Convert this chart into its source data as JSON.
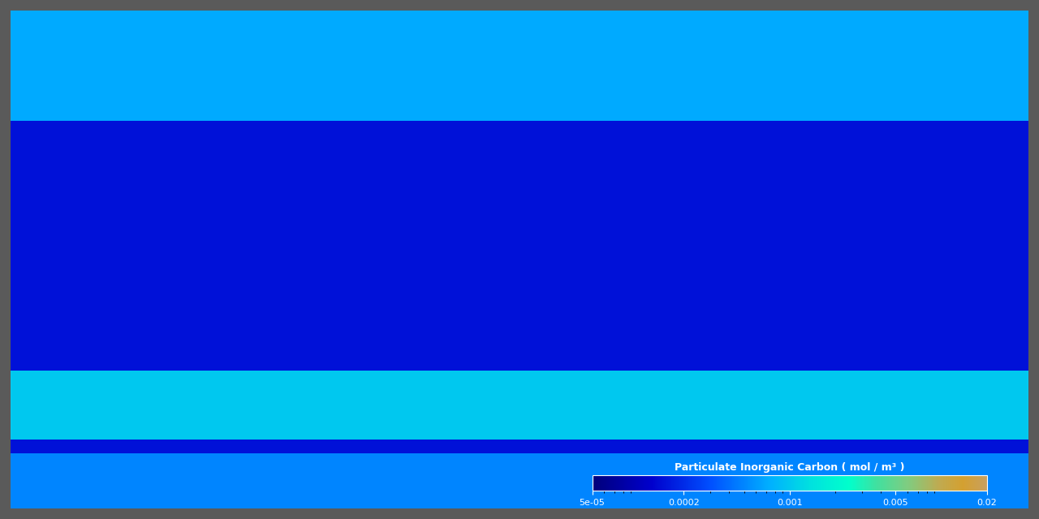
{
  "title": "Particulate Inorganic Carbon ( mol / m³ )",
  "colorbar_label": "Particulate Inorganic Carbon ( mol / m³ )",
  "vmin": 5e-05,
  "vmax": 0.02,
  "colorbar_ticks": [
    5e-05,
    0.0002,
    0.001,
    0.005,
    0.02
  ],
  "colorbar_ticklabels": [
    "5e-05",
    "0.0002",
    "0.001",
    "0.005",
    "0.02"
  ],
  "background_color": "#3a3a3a",
  "land_color": "#404040",
  "colormap_colors": [
    [
      0.0,
      "#00007a"
    ],
    [
      0.15,
      "#0000cd"
    ],
    [
      0.3,
      "#0050ff"
    ],
    [
      0.45,
      "#00b0ff"
    ],
    [
      0.55,
      "#00e0e0"
    ],
    [
      0.65,
      "#00ffcc"
    ],
    [
      0.72,
      "#40e0a0"
    ],
    [
      0.8,
      "#80cc80"
    ],
    [
      0.88,
      "#c0aa50"
    ],
    [
      0.94,
      "#d4a030"
    ],
    [
      1.0,
      "#c8a060"
    ]
  ],
  "figsize": [
    12.8,
    6.4
  ],
  "dpi": 100
}
